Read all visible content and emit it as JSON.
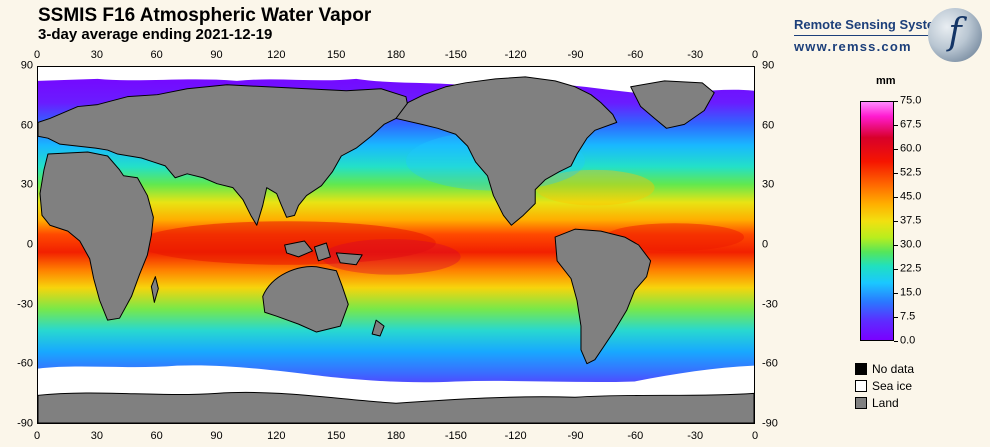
{
  "title": "SSMIS F16 Atmospheric Water Vapor",
  "subtitle": "3-day average ending 2021-12-19",
  "brand": {
    "name": "Remote Sensing Systems",
    "url": "www.remss.com",
    "logo_letter": "f"
  },
  "axes": {
    "lon_ticks": [
      "0",
      "30",
      "60",
      "90",
      "120",
      "150",
      "180",
      "-150",
      "-120",
      "-90",
      "-60",
      "-30",
      "0"
    ],
    "lat_ticks": [
      "90",
      "60",
      "30",
      "0",
      "-30",
      "-60",
      "-90"
    ]
  },
  "colorbar": {
    "unit": "mm",
    "ticks": [
      "75.0",
      "67.5",
      "60.0",
      "52.5",
      "45.0",
      "37.5",
      "30.0",
      "22.5",
      "15.0",
      "7.5",
      "0.0"
    ],
    "min": 0,
    "max": 75
  },
  "legend": [
    {
      "label": "No data",
      "color": "#000000"
    },
    {
      "label": "Sea ice",
      "color": "#ffffff"
    },
    {
      "label": "Land",
      "color": "#808080"
    }
  ],
  "colors": {
    "land": "#808080",
    "sea_ice": "#ffffff",
    "no_data": "#000000",
    "background": "#fbf6ea"
  }
}
